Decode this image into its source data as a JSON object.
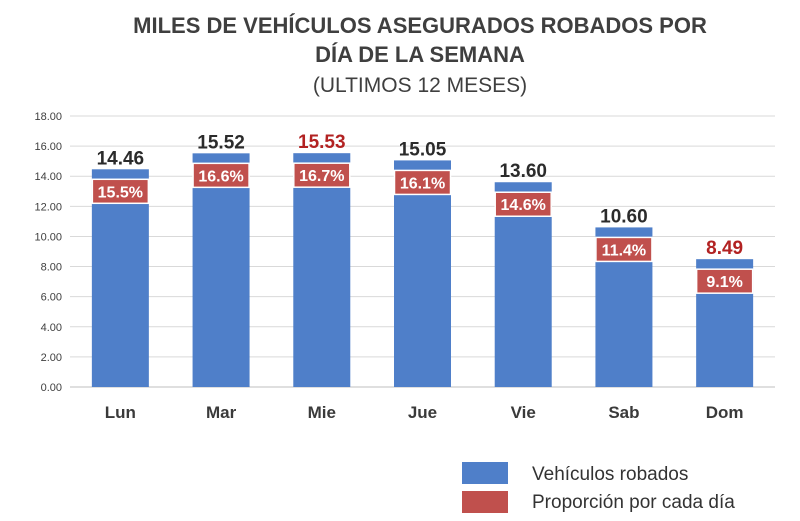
{
  "chart_data": {
    "type": "bar",
    "title_line1": "MILES DE VEHÍCULOS ASEGURADOS ROBADOS POR",
    "title_line2": "DÍA DE LA SEMANA",
    "subtitle": "(ULTIMOS 12 MESES)",
    "categories": [
      "Lun",
      "Mar",
      "Mie",
      "Jue",
      "Vie",
      "Sab",
      "Dom"
    ],
    "value_labels": [
      "14.46",
      "15.52",
      "15.53",
      "15.05",
      "13.60",
      "10.60",
      "8.49"
    ],
    "ylim": [
      0,
      18
    ],
    "y_ticks": [
      "0.00",
      "2.00",
      "4.00",
      "6.00",
      "8.00",
      "10.00",
      "12.00",
      "14.00",
      "16.00",
      "18.00"
    ],
    "grid": true,
    "series": [
      {
        "name": "Vehículos robados",
        "values": [
          14.46,
          15.52,
          15.53,
          15.05,
          13.6,
          10.6,
          8.49
        ],
        "color": "#4f7fc9"
      },
      {
        "name": "Proporción por cada día",
        "labels": [
          "15.5%",
          "16.6%",
          "16.7%",
          "16.1%",
          "14.6%",
          "11.4%",
          "9.1%"
        ],
        "color": "#c0504d"
      }
    ],
    "highlight_value_color": "#b22222",
    "normal_value_color": "#2b2b2b",
    "highlighted_categories": [
      "Mie",
      "Dom"
    ],
    "legend_position": "bottom-right"
  }
}
